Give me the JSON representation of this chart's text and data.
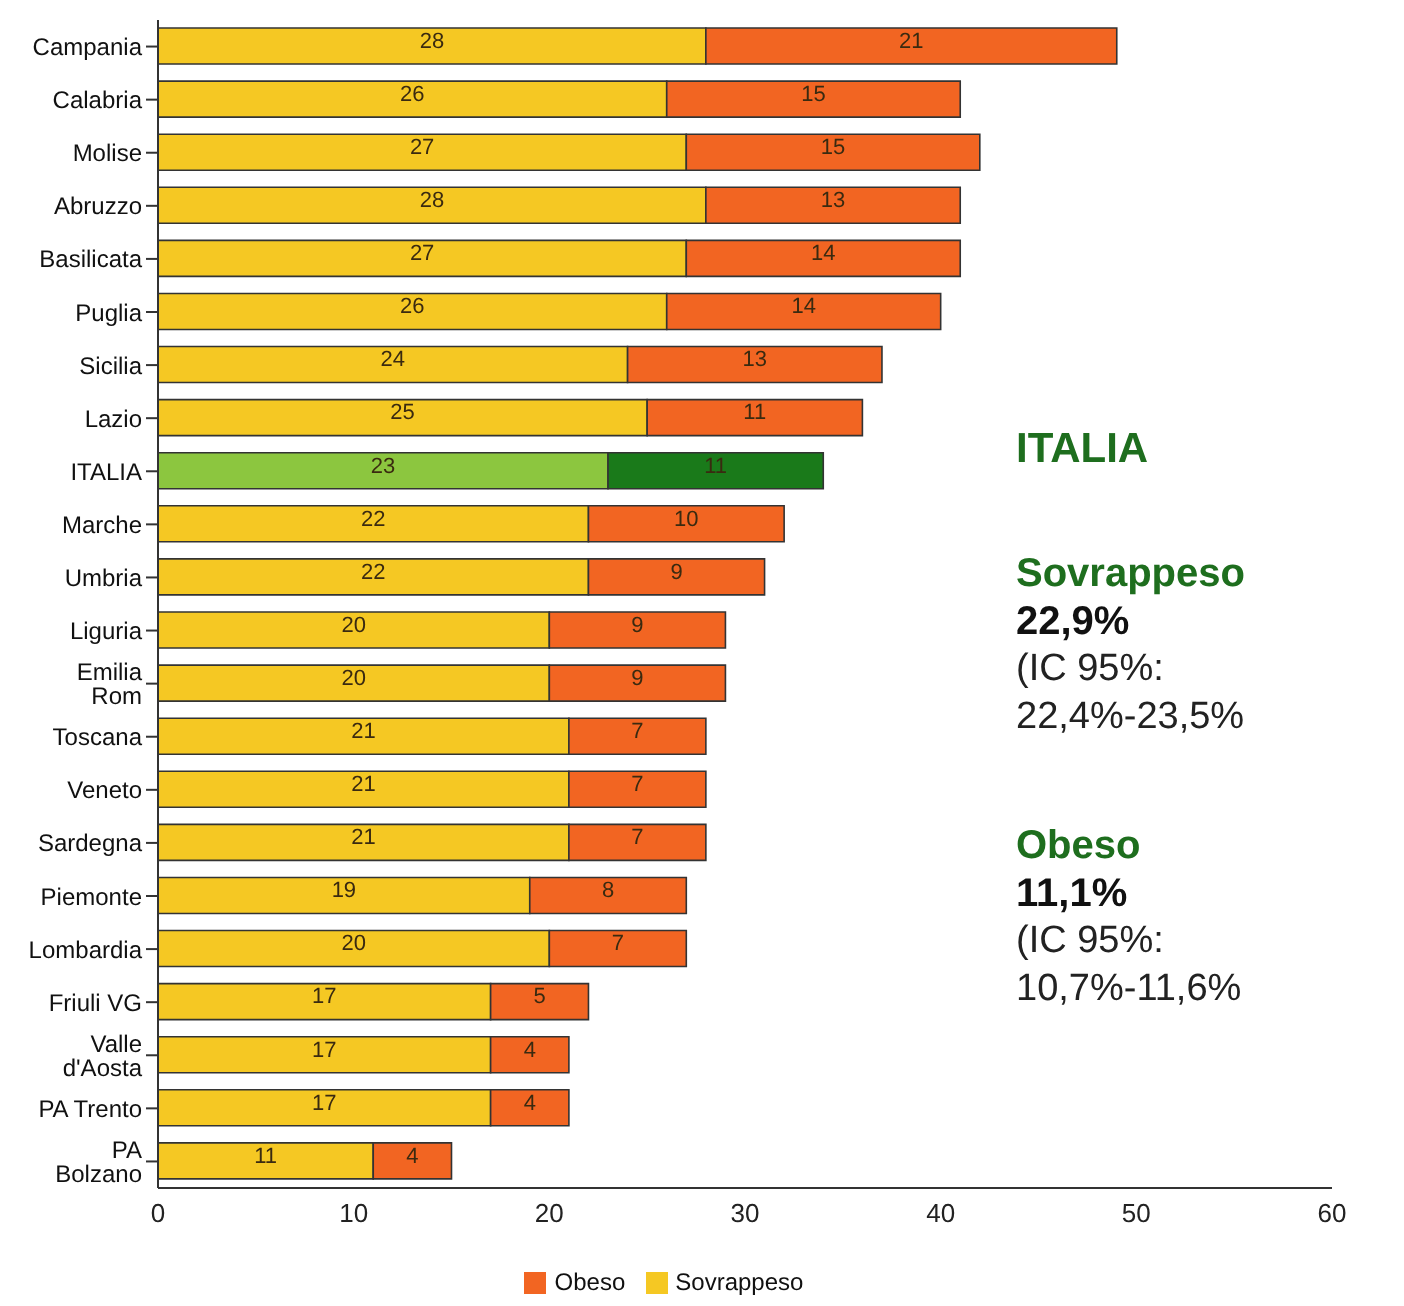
{
  "chart_data": {
    "type": "bar",
    "orientation": "horizontal",
    "stacked": true,
    "data_labels": true,
    "legend": "bottom",
    "grid": false,
    "categories": [
      "Campania",
      "Calabria",
      "Molise",
      "Abruzzo",
      "Basilicata",
      "Puglia",
      "Sicilia",
      "Lazio",
      "ITALIA",
      "Marche",
      "Umbria",
      "Liguria",
      "Emilia Rom",
      "Toscana",
      "Veneto",
      "Sardegna",
      "Piemonte",
      "Lombardia",
      "Friuli VG",
      "Valle d'Aosta",
      "PA Trento",
      "PA Bolzano"
    ],
    "series": [
      {
        "name": "Sovrappeso",
        "color": "#f5c823",
        "colors": [
          "#f5c823",
          "#f5c823",
          "#f5c823",
          "#f5c823",
          "#f5c823",
          "#f5c823",
          "#f5c823",
          "#f5c823",
          "#8cc63f",
          "#f5c823",
          "#f5c823",
          "#f5c823",
          "#f5c823",
          "#f5c823",
          "#f5c823",
          "#f5c823",
          "#f5c823",
          "#f5c823",
          "#f5c823",
          "#f5c823",
          "#f5c823",
          "#f5c823"
        ],
        "values": [
          28,
          26,
          27,
          28,
          27,
          26,
          24,
          25,
          23,
          22,
          22,
          20,
          20,
          21,
          21,
          21,
          19,
          20,
          17,
          17,
          17,
          11
        ]
      },
      {
        "name": "Obeso",
        "color": "#f26522",
        "colors": [
          "#f26522",
          "#f26522",
          "#f26522",
          "#f26522",
          "#f26522",
          "#f26522",
          "#f26522",
          "#f26522",
          "#1a7a1a",
          "#f26522",
          "#f26522",
          "#f26522",
          "#f26522",
          "#f26522",
          "#f26522",
          "#f26522",
          "#f26522",
          "#f26522",
          "#f26522",
          "#f26522",
          "#f26522",
          "#f26522"
        ],
        "values": [
          21,
          15,
          15,
          13,
          14,
          14,
          13,
          11,
          11,
          10,
          9,
          9,
          9,
          7,
          7,
          7,
          8,
          7,
          5,
          4,
          4,
          4
        ]
      }
    ],
    "xlim": [
      0,
      60
    ],
    "xticks": [
      0,
      10,
      20,
      30,
      40,
      50,
      60
    ],
    "annotations": [
      "ITALIA",
      "Sovrappeso",
      "22,9%",
      "(IC 95%: 22,4%-23,5%",
      "Obeso",
      "11,1%",
      "(IC 95%: 10,7%-11,6%"
    ]
  }
}
